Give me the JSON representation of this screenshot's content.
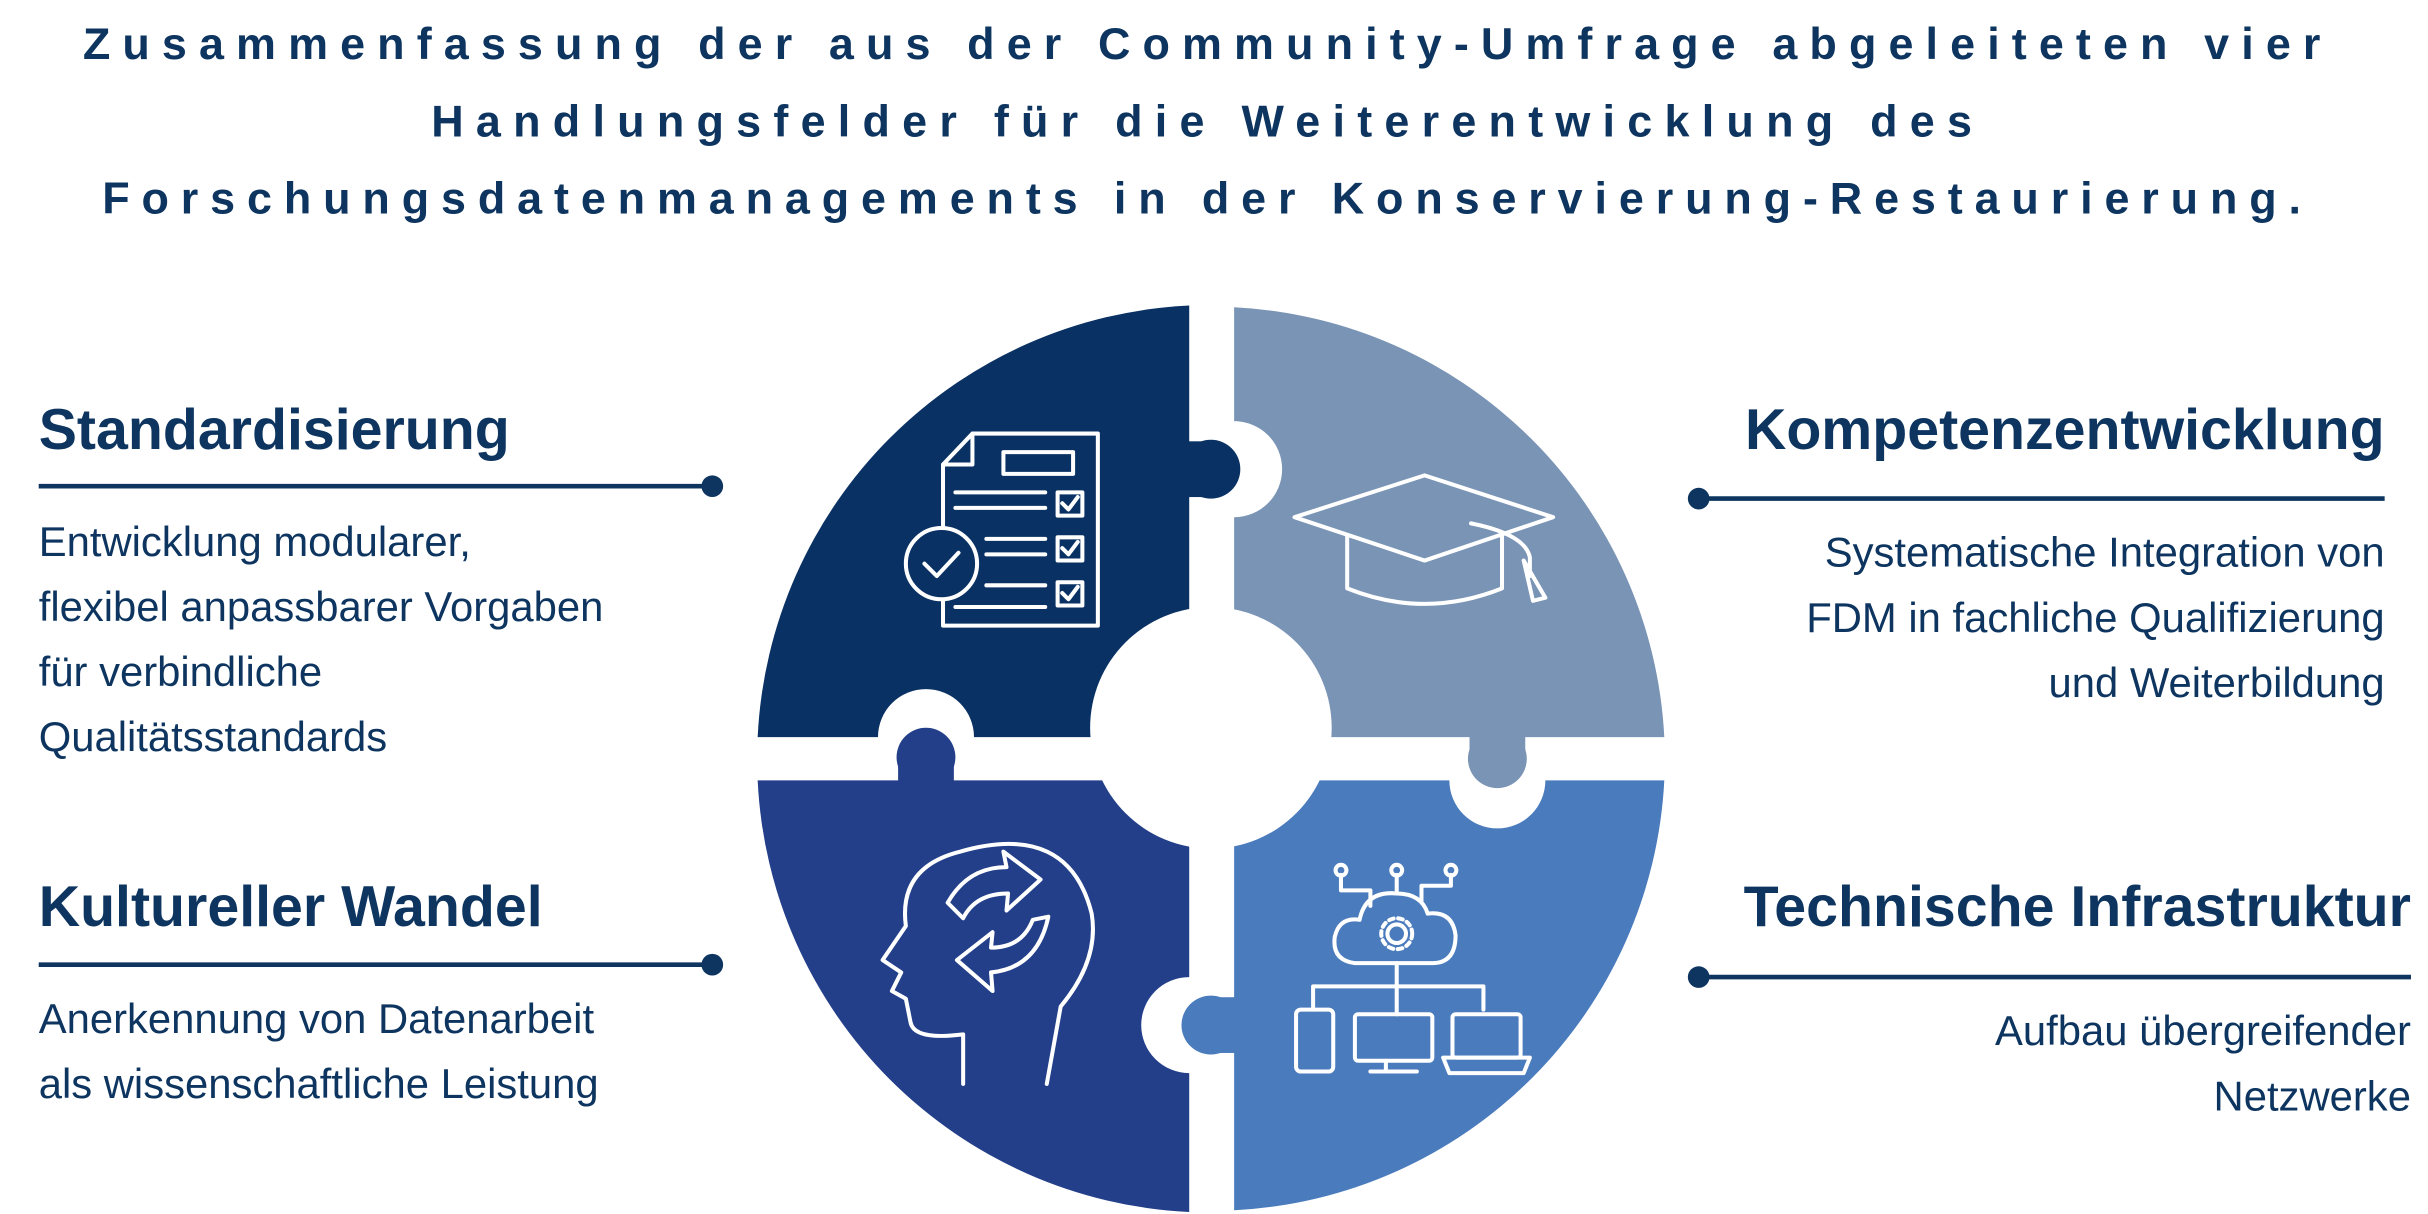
{
  "title": {
    "lines": [
      "Zusammenfassung der aus der Community-Umfrage abgeleiteten vier",
      "Handlungsfelder für die Weiterentwicklung des",
      "Forschungsdatenmanagements in der Konservierung-Restaurierung."
    ]
  },
  "fields": [
    {
      "heading": "Standardisierung",
      "description": [
        "Entwicklung modularer,",
        "flexibel anpassbarer Vorgaben",
        "für verbindliche",
        "Qualitätsstandards"
      ]
    },
    {
      "heading": "Kompetenzentwicklung",
      "description": [
        "Systematische Integration von",
        "FDM in fachliche Qualifizierung",
        "und Weiterbildung"
      ]
    },
    {
      "heading": "Kultureller Wandel",
      "description": [
        "Anerkennung von Datenarbeit",
        "als wissenschaftliche Leistung"
      ]
    },
    {
      "heading": "Technische Infrastruktur",
      "description": [
        "Aufbau übergreifender",
        "Netzwerke"
      ]
    }
  ]
}
